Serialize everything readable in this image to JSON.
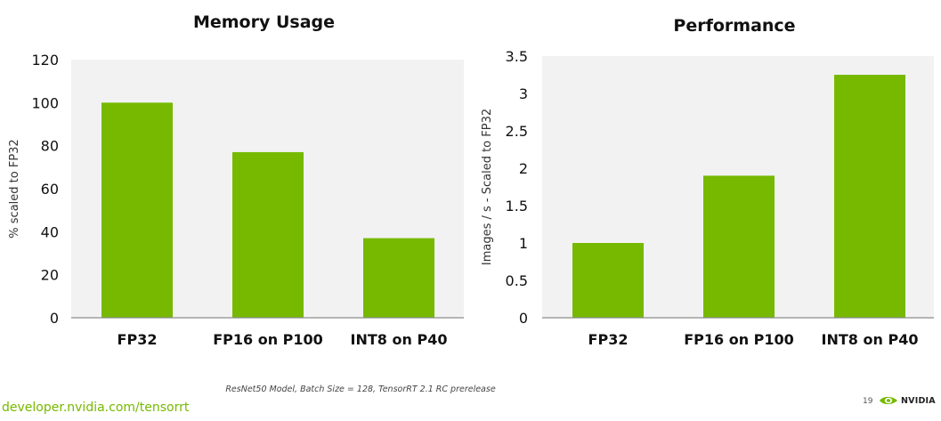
{
  "chart_data": [
    {
      "type": "bar",
      "title": "Memory Usage",
      "xlabel": "",
      "ylabel": "% scaled to FP32",
      "categories": [
        "FP32",
        "FP16 on P100",
        "INT8 on P40"
      ],
      "values": [
        100,
        77,
        37
      ],
      "ylim": [
        0,
        120
      ],
      "yticks": [
        0,
        20,
        40,
        60,
        80,
        100,
        120
      ],
      "ytick_labels": [
        "0",
        "20",
        "40",
        "60",
        "80",
        "100",
        "120"
      ],
      "bar_color": "#76b900",
      "plot_bg": "#f2f2f2",
      "grid": false,
      "legend": "none"
    },
    {
      "type": "bar",
      "title": "Performance",
      "xlabel": "",
      "ylabel": "Images / s  - Scaled to FP32",
      "categories": [
        "FP32",
        "FP16 on P100",
        "INT8 on P40"
      ],
      "values": [
        1,
        1.9,
        3.25
      ],
      "ylim": [
        0,
        3.5
      ],
      "yticks": [
        0,
        0.5,
        1,
        1.5,
        2,
        2.5,
        3,
        3.5
      ],
      "ytick_labels": [
        "0",
        "0.5",
        "1",
        "1.5",
        "2",
        "2.5",
        "3",
        "3.5"
      ],
      "bar_color": "#76b900",
      "plot_bg": "#f2f2f2",
      "grid": false,
      "legend": "none"
    }
  ],
  "footer": {
    "note": "ResNet50 Model, Batch Size = 128, TensorRT 2.1 RC prerelease",
    "url": "developer.nvidia.com/tensorrt",
    "page_number": "19",
    "logo_text": "NVIDIA",
    "logo_color": "#76b900"
  }
}
